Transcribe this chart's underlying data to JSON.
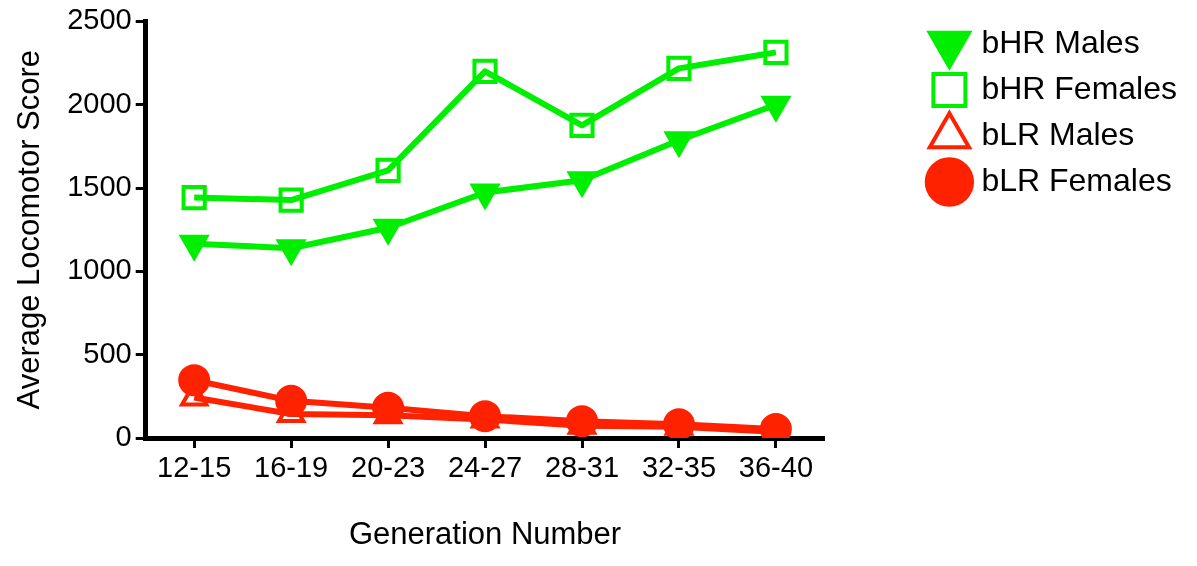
{
  "chart_data": {
    "type": "line",
    "xlabel": "Generation Number",
    "ylabel": "Average Locomotor Score",
    "categories": [
      "12-15",
      "16-19",
      "20-23",
      "24-27",
      "28-31",
      "32-35",
      "36-40"
    ],
    "series": [
      {
        "name": "bHR Males",
        "color": "#00ee00",
        "marker": "triangle-down",
        "values": [
          1166,
          1139,
          1262,
          1473,
          1547,
          1787,
          2000
        ]
      },
      {
        "name": "bHR Females",
        "color": "#00ee00",
        "marker": "square",
        "values": [
          1443,
          1428,
          1606,
          2200,
          1876,
          2218,
          2314
        ]
      },
      {
        "name": "bLR Males",
        "color": "#ff2200",
        "marker": "triangle",
        "values": [
          243,
          144,
          136,
          111,
          74,
          67,
          37
        ]
      },
      {
        "name": "bLR Females",
        "color": "#ff2200",
        "marker": "circle",
        "values": [
          347,
          223,
          181,
          131,
          101,
          82,
          54
        ]
      }
    ],
    "ylim": [
      0,
      2500
    ],
    "yticks": [
      0,
      500,
      1000,
      1500,
      2000,
      2500
    ],
    "grid": false,
    "legend": "top right"
  }
}
